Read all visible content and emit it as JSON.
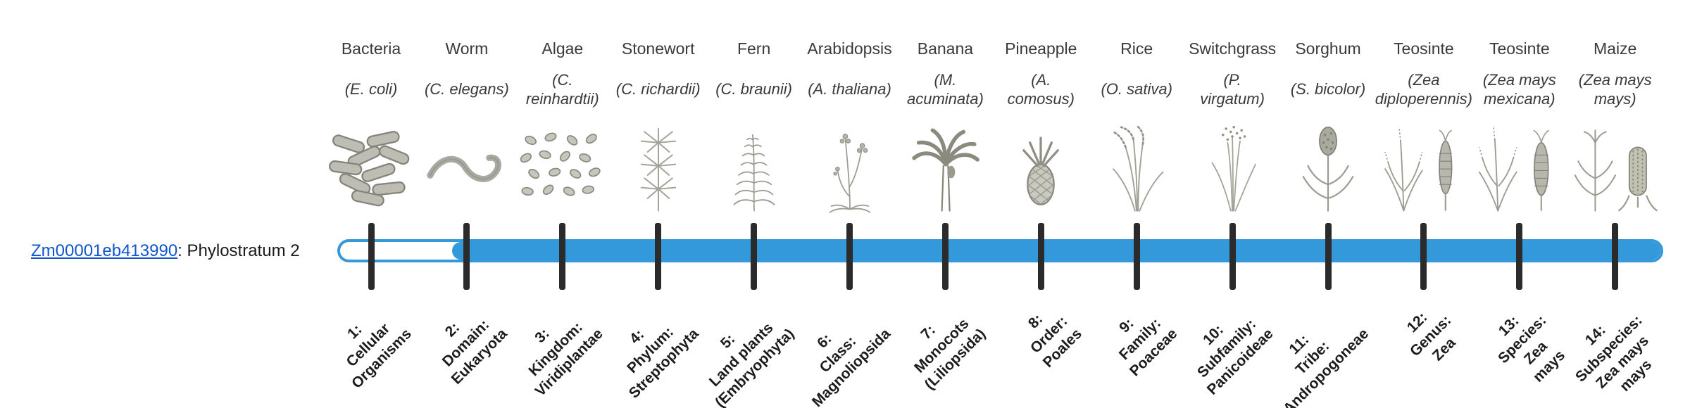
{
  "gene": {
    "id": "Zm00001eb413990",
    "suffix": ": Phylostratum 2"
  },
  "timeline": {
    "bar_color": "#3399DB",
    "bar_unfilled_color": "#FFFFFF",
    "tick_color": "#2B2B2B",
    "filled_from_stratum": 2,
    "num_strata": 14
  },
  "strata": [
    {
      "index": 1,
      "organism": "Bacteria",
      "scientific_name": "(E. coli)",
      "illustration": "bacteria-illustration",
      "tick_label": "1:\nCellular\nOrganisms"
    },
    {
      "index": 2,
      "organism": "Worm",
      "scientific_name": "(C. elegans)",
      "illustration": "worm-illustration",
      "tick_label": "2:\nDomain:\nEukaryota"
    },
    {
      "index": 3,
      "organism": "Algae",
      "scientific_name": "(C.\nreinhardtii)",
      "illustration": "algae-illustration",
      "tick_label": "3:\nKingdom:\nViridiplantae"
    },
    {
      "index": 4,
      "organism": "Stonewort",
      "scientific_name": "(C. richardii)",
      "illustration": "stonewort-illustration",
      "tick_label": "4:\nPhylum:\nStreptophyta"
    },
    {
      "index": 5,
      "organism": "Fern",
      "scientific_name": "(C. braunii)",
      "illustration": "fern-illustration",
      "tick_label": "5:\nLand plants\n(Embryophyta)"
    },
    {
      "index": 6,
      "organism": "Arabidopsis",
      "scientific_name": "(A. thaliana)",
      "illustration": "arabidopsis-illustration",
      "tick_label": "6:\nClass:\nMagnoliopsida"
    },
    {
      "index": 7,
      "organism": "Banana",
      "scientific_name": "(M.\nacuminata)",
      "illustration": "banana-illustration",
      "tick_label": "7:\nMonocots\n(Liliopsida)"
    },
    {
      "index": 8,
      "organism": "Pineapple",
      "scientific_name": "(A.\ncomosus)",
      "illustration": "pineapple-illustration",
      "tick_label": "8:\nOrder:\nPoales"
    },
    {
      "index": 9,
      "organism": "Rice",
      "scientific_name": "(O. sativa)",
      "illustration": "rice-illustration",
      "tick_label": "9:\nFamily:\nPoaceae"
    },
    {
      "index": 10,
      "organism": "Switchgrass",
      "scientific_name": "(P.\nvirgatum)",
      "illustration": "switchgrass-illustration",
      "tick_label": "10:\nSubfamily:\nPanicoideae"
    },
    {
      "index": 11,
      "organism": "Sorghum",
      "scientific_name": "(S. bicolor)",
      "illustration": "sorghum-illustration",
      "tick_label": "11:\nTribe:\nAndropogoneae"
    },
    {
      "index": 12,
      "organism": "Teosinte",
      "scientific_name": "(Zea\ndiploperennis)",
      "illustration": "teosinte-diploperennis-illustration",
      "tick_label": "12:\nGenus:\nZea"
    },
    {
      "index": 13,
      "organism": "Teosinte",
      "scientific_name": "(Zea mays\nmexicana)",
      "illustration": "teosinte-mexicana-illustration",
      "tick_label": "13:\nSpecies:\nZea\nmays"
    },
    {
      "index": 14,
      "organism": "Maize",
      "scientific_name": "(Zea mays\nmays)",
      "illustration": "maize-illustration",
      "tick_label": "14:\nSubspecies:\nZea mays\nmays"
    }
  ]
}
